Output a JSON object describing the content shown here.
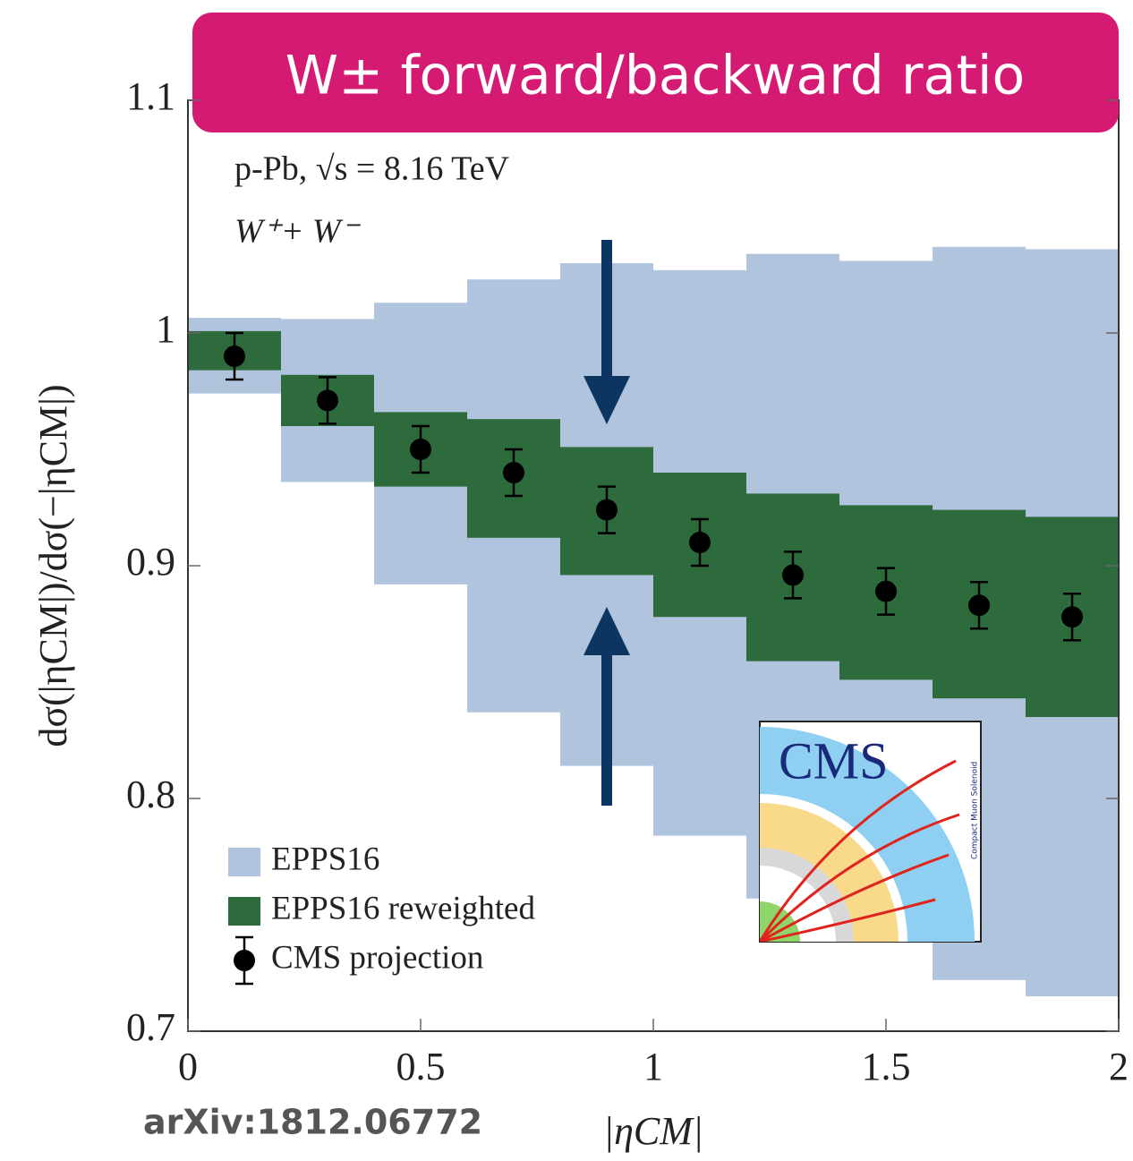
{
  "chart_data": {
    "type": "band",
    "title": "W± forward/backward ratio",
    "annotations": [
      "p-Pb, √s = 8.16 TeV",
      "W⁺+ W⁻"
    ],
    "x_label": "|ηCM|",
    "y_label": "dσ(|ηCM|)/dσ(−|ηCM|)",
    "source": "arXiv:1812.06772",
    "bins": [
      0,
      0.2,
      0.4,
      0.6,
      0.8,
      1.0,
      1.2,
      1.4,
      1.6,
      1.8,
      2.0
    ],
    "x": [
      0.1,
      0.3,
      0.5,
      0.7,
      0.9,
      1.1,
      1.3,
      1.5,
      1.7,
      1.9
    ],
    "series": [
      {
        "name": "EPPS16",
        "color": "#b0c4de",
        "low": [
          0.974,
          0.936,
          0.892,
          0.837,
          0.814,
          0.784,
          0.757,
          0.741,
          0.722,
          0.715
        ],
        "high": [
          1.0065,
          1.006,
          1.013,
          1.023,
          1.03,
          1.027,
          1.034,
          1.031,
          1.037,
          1.036
        ]
      },
      {
        "name": "EPPS16 reweighted",
        "color": "#2d6a3c",
        "low": [
          0.984,
          0.96,
          0.934,
          0.912,
          0.896,
          0.878,
          0.859,
          0.851,
          0.843,
          0.835
        ],
        "high": [
          1.0008,
          0.982,
          0.966,
          0.963,
          0.951,
          0.94,
          0.931,
          0.926,
          0.924,
          0.921
        ]
      },
      {
        "name": "CMS projection",
        "color": "#000000",
        "values": [
          0.99,
          0.971,
          0.95,
          0.94,
          0.924,
          0.91,
          0.896,
          0.889,
          0.883,
          0.878
        ],
        "errors": [
          0.01,
          0.01,
          0.01,
          0.01,
          0.01,
          0.01,
          0.01,
          0.01,
          0.01,
          0.01
        ]
      }
    ],
    "xlim": [
      0,
      2
    ],
    "ylim": [
      0.7,
      1.1
    ],
    "xticks": [
      0,
      0.5,
      1,
      1.5,
      2
    ],
    "yticks": [
      0.7,
      0.8,
      0.9,
      1,
      1.1
    ],
    "legend": "lower left"
  },
  "logo": {
    "text": "CMS",
    "subtitle": "Compact Muon Solenoid"
  }
}
